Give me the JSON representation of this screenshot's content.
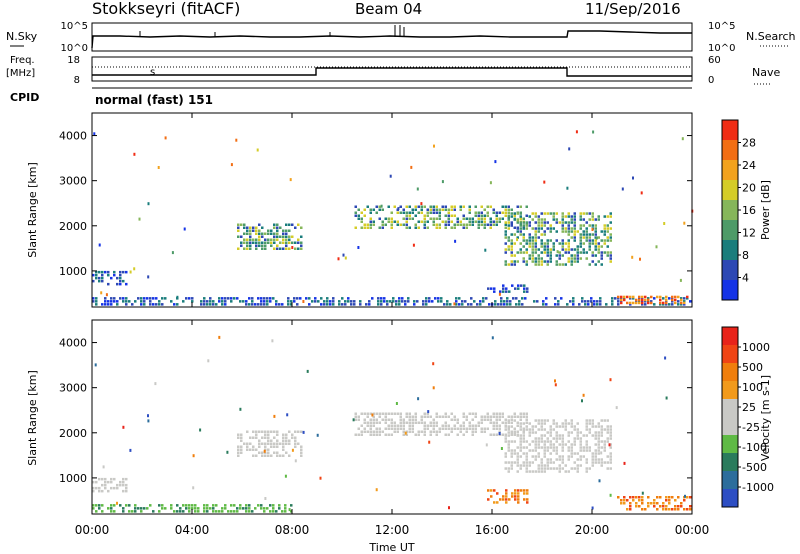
{
  "header": {
    "station": "Stokkseyri (fitACF)",
    "beam": "Beam 04",
    "date": "11/Sep/2016"
  },
  "top_panels": {
    "nsky_label": "N.Sky",
    "nsky_ticks": [
      "10^5",
      "10^0"
    ],
    "nsearch_label": "N.Search",
    "nsearch_ticks": [
      "10^5",
      "10^0"
    ],
    "freq_label_1": "Freq.",
    "freq_label_2": "[MHz]",
    "freq_ticks": [
      "18",
      "8"
    ],
    "nave_label": "Nave",
    "nave_ticks": [
      "60",
      "0"
    ],
    "cpid_label": "CPID",
    "cpid_value": "normal (fast) 151"
  },
  "x_axis": {
    "title": "Time UT",
    "ticks": [
      "00:00",
      "04:00",
      "08:00",
      "12:00",
      "16:00",
      "20:00",
      "00:00"
    ]
  },
  "colors": {
    "power": [
      "#1533e6",
      "#2d48b4",
      "#1a7d7c",
      "#4e9b68",
      "#86b65a",
      "#d4cc28",
      "#f2a21e",
      "#f26e14",
      "#f02c14"
    ],
    "velocity": [
      "#2d4ec3",
      "#2c6d9c",
      "#2a7b5c",
      "#5fba45",
      "#c9c9c6",
      "#c9c9c6",
      "#f29a1b",
      "#f07e0c",
      "#f04414",
      "#e8231a"
    ]
  },
  "chart_data": [
    {
      "type": "heatmap",
      "name": "power",
      "ylabel": "Slant Range [km]",
      "yticks": [
        "4000",
        "3000",
        "2000",
        "1000"
      ],
      "ylim": [
        200,
        4500
      ],
      "xlim": [
        0,
        24
      ],
      "colorbar_label": "Power [dB]",
      "colorbar_ticks": [
        "28",
        "24",
        "20",
        "16",
        "12",
        "8",
        "4"
      ],
      "features": [
        {
          "t": [
            0,
            1.4
          ],
          "r": [
            700,
            1000
          ],
          "level": "low"
        },
        {
          "t": [
            0,
            24
          ],
          "r": [
            220,
            420
          ],
          "level": "low"
        },
        {
          "t": [
            5.8,
            8.4
          ],
          "r": [
            1450,
            2050
          ],
          "level": "medium"
        },
        {
          "t": [
            10.5,
            17.5
          ],
          "r": [
            1900,
            2450
          ],
          "level": "medium"
        },
        {
          "t": [
            16.5,
            20.8
          ],
          "r": [
            1100,
            2300
          ],
          "level": "medium"
        },
        {
          "t": [
            15.8,
            17.5
          ],
          "r": [
            500,
            700
          ],
          "level": "low"
        },
        {
          "t": [
            21,
            24
          ],
          "r": [
            250,
            450
          ],
          "level": "high"
        }
      ]
    },
    {
      "type": "heatmap",
      "name": "velocity",
      "ylabel": "Slant Range [km]",
      "yticks": [
        "4000",
        "3000",
        "2000",
        "1000"
      ],
      "ylim": [
        200,
        4500
      ],
      "xlim": [
        0,
        24
      ],
      "colorbar_label": "Velocity [m s-1]",
      "colorbar_ticks": [
        "1000",
        "500",
        "100",
        "25",
        "-25",
        "-100",
        "-500",
        "-1000"
      ],
      "features": [
        {
          "t": [
            0,
            1.4
          ],
          "r": [
            700,
            1000
          ],
          "level": "grey"
        },
        {
          "t": [
            0,
            8
          ],
          "r": [
            220,
            420
          ],
          "level": "green"
        },
        {
          "t": [
            5.8,
            8.4
          ],
          "r": [
            1450,
            2050
          ],
          "level": "grey"
        },
        {
          "t": [
            10.5,
            17.5
          ],
          "r": [
            1900,
            2450
          ],
          "level": "grey"
        },
        {
          "t": [
            16.5,
            20.8
          ],
          "r": [
            1100,
            2300
          ],
          "level": "grey"
        },
        {
          "t": [
            15.8,
            17.5
          ],
          "r": [
            450,
            750
          ],
          "level": "orange"
        },
        {
          "t": [
            21,
            24
          ],
          "r": [
            250,
            600
          ],
          "level": "orange"
        }
      ]
    }
  ]
}
